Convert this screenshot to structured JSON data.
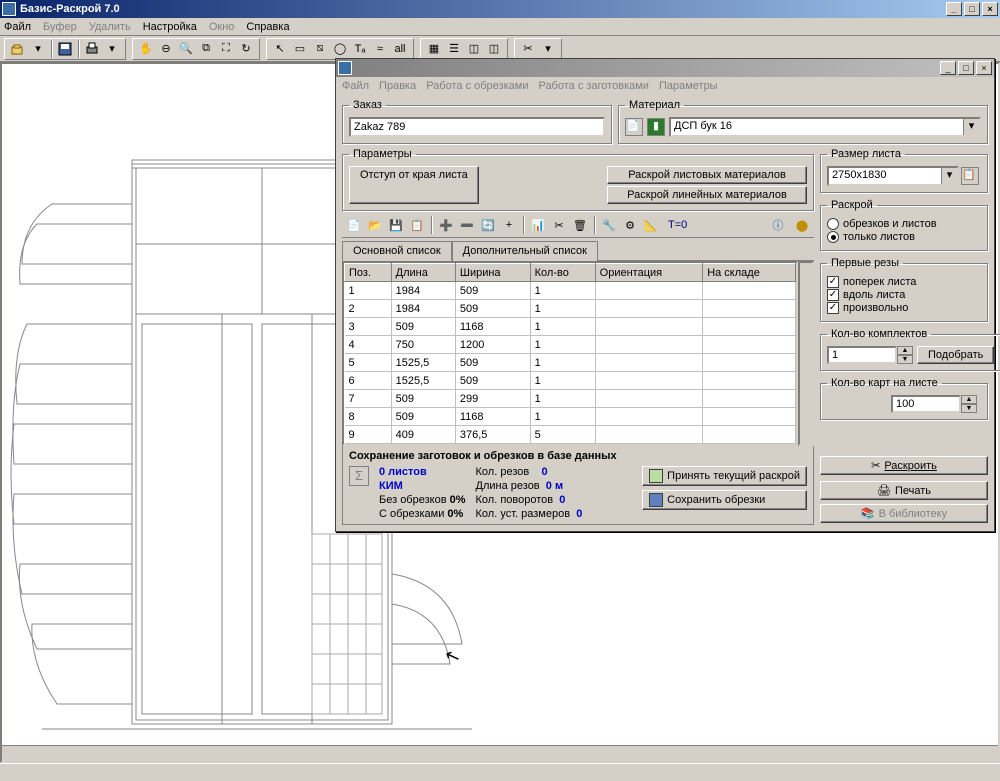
{
  "main_window": {
    "title": "Базис-Раскрой 7.0",
    "menu": [
      "Файл",
      "Буфер",
      "Удалить",
      "Настройка",
      "Окно",
      "Справка"
    ],
    "menu_disabled": [
      false,
      true,
      true,
      false,
      true,
      false
    ]
  },
  "dialog": {
    "menu": [
      "Файл",
      "Правка",
      "Работа с обрезками",
      "Работа с заготовками",
      "Параметры"
    ],
    "zakaz": {
      "label": "Заказ",
      "value": "Zakaz 789"
    },
    "material": {
      "label": "Материал",
      "value": "ДСП бук 16"
    },
    "params": {
      "legend": "Параметры",
      "indent_btn": "Отступ от края листа",
      "sheet_cut_btn": "Раскрой листовых материалов",
      "linear_cut_btn": "Раскрой линейных материалов"
    },
    "t0": "T=0",
    "tabs": {
      "main": "Основной список",
      "extra": "Дополнительный список"
    },
    "columns": [
      "Поз.",
      "Длина",
      "Ширина",
      "Кол-во",
      "Ориентация",
      "На складе"
    ],
    "rows": [
      [
        "1",
        "1984",
        "509",
        "1",
        "",
        ""
      ],
      [
        "2",
        "1984",
        "509",
        "1",
        "",
        ""
      ],
      [
        "3",
        "509",
        "1168",
        "1",
        "",
        ""
      ],
      [
        "4",
        "750",
        "1200",
        "1",
        "",
        ""
      ],
      [
        "5",
        "1525,5",
        "509",
        "1",
        "",
        ""
      ],
      [
        "6",
        "1525,5",
        "509",
        "1",
        "",
        ""
      ],
      [
        "7",
        "509",
        "299",
        "1",
        "",
        ""
      ],
      [
        "8",
        "509",
        "1168",
        "1",
        "",
        ""
      ],
      [
        "9",
        "409",
        "376,5",
        "5",
        "",
        ""
      ]
    ],
    "summary": {
      "title": "Сохранение заготовок и обрезков в базе данных",
      "sheets_count": "0 листов",
      "kim": "КИМ",
      "no_scraps_label": "Без обрезков",
      "no_scraps_val": "0%",
      "with_scraps_label": "С обрезками",
      "with_scraps_val": "0%",
      "cuts_label": "Кол. резов",
      "cuts_val": "0",
      "cuts_len_label": "Длина резов",
      "cuts_len_val": "0 м",
      "turns_label": "Кол. поворотов",
      "turns_val": "0",
      "sizes_label": "Кол. уст. размеров",
      "sizes_val": "0",
      "accept_btn": "Принять текущий раскрой",
      "save_scraps_btn": "Сохранить обрезки",
      "accept_color": "#b8e0a0",
      "save_color": "#6080c0"
    },
    "sheet_size": {
      "legend": "Размер листа",
      "value": "2750x1830"
    },
    "cutting": {
      "legend": "Раскрой",
      "opt_scraps": "обрезков и листов",
      "opt_sheets": "только листов",
      "selected": "sheets"
    },
    "first_cuts": {
      "legend": "Первые резы",
      "across": "поперек листа",
      "along": "вдоль листа",
      "free": "произвольно"
    },
    "sets": {
      "legend": "Кол-во комплектов",
      "value": "1",
      "pick_btn": "Подобрать"
    },
    "maps": {
      "legend": "Кол-во карт на листе",
      "value": "100"
    },
    "buttons": {
      "cut": "Раскроить",
      "print": "Печать",
      "library": "В библиотеку"
    }
  },
  "colors": {
    "title_active_start": "#0a246a",
    "title_active_end": "#a6caf0",
    "face": "#d4d0c8"
  }
}
